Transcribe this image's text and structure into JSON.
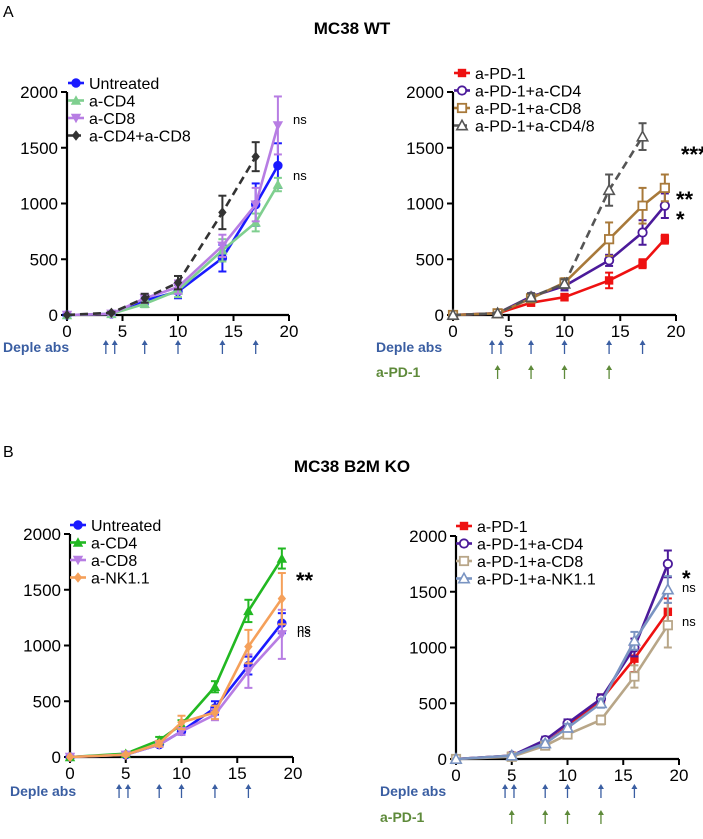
{
  "figure": {
    "panel_A_letter": "A",
    "panel_A_title": "MC38 WT",
    "panel_B_letter": "B",
    "panel_B_title": "MC38 B2M KO"
  },
  "chart_data": [
    {
      "type": "line",
      "panel": "A-left",
      "title": "",
      "xlim": [
        0,
        20
      ],
      "ylim": [
        0,
        2000
      ],
      "xticks": [
        0,
        5,
        10,
        15,
        20
      ],
      "yticks": [
        0,
        500,
        1000,
        1500,
        2000
      ],
      "legend_position": "top-left",
      "series": [
        {
          "name": "Untreated",
          "color": "#1a1aff",
          "marker": "circle-filled",
          "dashed": false,
          "x": [
            0,
            4,
            7,
            10,
            14,
            17,
            19
          ],
          "y": [
            0,
            10,
            130,
            210,
            510,
            990,
            1340
          ],
          "err": [
            0,
            8,
            35,
            60,
            120,
            190,
            200
          ]
        },
        {
          "name": "a-CD4",
          "color": "#7fcf8f",
          "marker": "triangle-up",
          "dashed": false,
          "x": [
            0,
            4,
            7,
            10,
            14,
            17,
            19
          ],
          "y": [
            0,
            10,
            100,
            220,
            580,
            830,
            1170
          ],
          "err": [
            0,
            8,
            30,
            60,
            100,
            80,
            60
          ]
        },
        {
          "name": "a-CD8",
          "color": "#b77de3",
          "marker": "triangle-down",
          "dashed": false,
          "x": [
            0,
            4,
            7,
            10,
            14,
            17,
            19
          ],
          "y": [
            0,
            10,
            150,
            250,
            620,
            990,
            1700
          ],
          "err": [
            0,
            8,
            40,
            60,
            100,
            150,
            260
          ]
        },
        {
          "name": "a-CD4+a-CD8",
          "color": "#333333",
          "marker": "diamond",
          "dashed": true,
          "x": [
            0,
            4,
            7,
            10,
            14,
            17
          ],
          "y": [
            0,
            20,
            150,
            290,
            920,
            1420
          ],
          "err": [
            0,
            8,
            40,
            60,
            150,
            130
          ]
        }
      ],
      "annotations": [
        {
          "text": "ns",
          "series": "a-CD8"
        },
        {
          "text": "ns",
          "series": "Untreated"
        }
      ],
      "below_axis": [
        {
          "label": "Deple abs",
          "color": "#3a5ea2",
          "days": [
            3.5,
            4.3,
            7,
            10,
            14,
            17
          ]
        }
      ]
    },
    {
      "type": "line",
      "panel": "A-right",
      "title": "",
      "xlim": [
        0,
        20
      ],
      "ylim": [
        0,
        2000
      ],
      "xticks": [
        0,
        5,
        10,
        15,
        20
      ],
      "yticks": [
        0,
        500,
        1000,
        1500,
        2000
      ],
      "legend_position": "top-left",
      "series": [
        {
          "name": "a-PD-1",
          "color": "#ee1111",
          "marker": "square-filled",
          "dashed": false,
          "x": [
            0,
            4,
            7,
            10,
            14,
            17,
            19
          ],
          "y": [
            0,
            15,
            110,
            160,
            310,
            460,
            680
          ],
          "err": [
            0,
            8,
            25,
            30,
            70,
            40,
            40
          ]
        },
        {
          "name": "a-PD-1+a-CD4",
          "color": "#4b1a9a",
          "marker": "circle-open",
          "dashed": false,
          "x": [
            0,
            4,
            7,
            10,
            14,
            17,
            19
          ],
          "y": [
            0,
            15,
            165,
            260,
            490,
            740,
            980
          ],
          "err": [
            0,
            8,
            30,
            40,
            50,
            110,
            110
          ]
        },
        {
          "name": "a-PD-1+a-CD8",
          "color": "#a8793a",
          "marker": "square-open",
          "dashed": false,
          "x": [
            0,
            4,
            7,
            10,
            14,
            17,
            19
          ],
          "y": [
            0,
            15,
            150,
            290,
            680,
            980,
            1140
          ],
          "err": [
            0,
            8,
            35,
            40,
            150,
            160,
            120
          ]
        },
        {
          "name": "a-PD-1+a-CD4/8",
          "color": "#555555",
          "marker": "triangle-open",
          "dashed": true,
          "x": [
            0,
            4,
            7,
            10,
            14,
            17
          ],
          "y": [
            0,
            15,
            160,
            280,
            1120,
            1600
          ],
          "err": [
            0,
            8,
            35,
            40,
            140,
            120
          ]
        }
      ],
      "annotations": [
        {
          "text": "****",
          "series": "a-PD-1+a-CD4/8"
        },
        {
          "text": "**",
          "series": "a-PD-1+a-CD8"
        },
        {
          "text": "*",
          "series": "a-PD-1+a-CD4"
        }
      ],
      "below_axis": [
        {
          "label": "Deple abs",
          "color": "#3a5ea2",
          "days": [
            3.5,
            4.3,
            7,
            10,
            14,
            17
          ]
        },
        {
          "label": "a-PD-1",
          "color": "#5e8a3a",
          "days": [
            4,
            7,
            10,
            14
          ]
        }
      ]
    },
    {
      "type": "line",
      "panel": "B-left",
      "title": "",
      "xlim": [
        0,
        20
      ],
      "ylim": [
        0,
        2000
      ],
      "xticks": [
        0,
        5,
        10,
        15,
        20
      ],
      "yticks": [
        0,
        500,
        1000,
        1500,
        2000
      ],
      "legend_position": "top-left",
      "series": [
        {
          "name": "Untreated",
          "color": "#1a1aff",
          "marker": "circle-filled",
          "dashed": false,
          "x": [
            0,
            5,
            8,
            10,
            13,
            16,
            19
          ],
          "y": [
            0,
            20,
            110,
            230,
            440,
            820,
            1200
          ],
          "err": [
            0,
            8,
            20,
            30,
            60,
            80,
            90
          ]
        },
        {
          "name": "a-CD4",
          "color": "#22b822",
          "marker": "triangle-up",
          "dashed": false,
          "x": [
            0,
            5,
            8,
            10,
            13,
            16,
            19
          ],
          "y": [
            0,
            30,
            150,
            290,
            630,
            1310,
            1780
          ],
          "err": [
            0,
            8,
            30,
            40,
            50,
            100,
            90
          ]
        },
        {
          "name": "a-CD8",
          "color": "#b77de3",
          "marker": "triangle-down",
          "dashed": false,
          "x": [
            0,
            5,
            8,
            10,
            13,
            16,
            19
          ],
          "y": [
            0,
            20,
            110,
            230,
            380,
            770,
            1100
          ],
          "err": [
            0,
            8,
            20,
            30,
            50,
            150,
            220
          ]
        },
        {
          "name": "a-NK1.1",
          "color": "#f5a05a",
          "marker": "diamond",
          "dashed": false,
          "x": [
            0,
            5,
            8,
            10,
            13,
            16,
            19
          ],
          "y": [
            0,
            20,
            120,
            310,
            400,
            990,
            1420
          ],
          "err": [
            0,
            8,
            25,
            60,
            60,
            150,
            230
          ]
        }
      ],
      "annotations": [
        {
          "text": "**",
          "series": "a-CD4"
        },
        {
          "text": "ns",
          "series": "a-NK1.1"
        },
        {
          "text": "ns",
          "series": "Untreated"
        }
      ],
      "below_axis": [
        {
          "label": "Deple abs",
          "color": "#3a5ea2",
          "days": [
            4.4,
            5.2,
            8,
            10,
            13,
            16
          ]
        }
      ]
    },
    {
      "type": "line",
      "panel": "B-right",
      "title": "",
      "xlim": [
        0,
        20
      ],
      "ylim": [
        0,
        2000
      ],
      "xticks": [
        0,
        5,
        10,
        15,
        20
      ],
      "yticks": [
        0,
        500,
        1000,
        1500,
        2000
      ],
      "legend_position": "top-left",
      "series": [
        {
          "name": "a-PD-1",
          "color": "#ee1111",
          "marker": "square-filled",
          "dashed": false,
          "x": [
            0,
            5,
            8,
            10,
            13,
            16,
            19
          ],
          "y": [
            0,
            30,
            140,
            290,
            530,
            900,
            1320
          ],
          "err": [
            0,
            8,
            25,
            35,
            50,
            120,
            120
          ]
        },
        {
          "name": "a-PD-1+a-CD4",
          "color": "#4b1a9a",
          "marker": "circle-open",
          "dashed": false,
          "x": [
            0,
            5,
            8,
            10,
            13,
            16,
            19
          ],
          "y": [
            0,
            30,
            170,
            320,
            540,
            1000,
            1750
          ],
          "err": [
            0,
            8,
            30,
            35,
            40,
            80,
            120
          ]
        },
        {
          "name": "a-PD-1+a-CD8",
          "color": "#b8a688",
          "marker": "square-open",
          "dashed": false,
          "x": [
            0,
            5,
            8,
            10,
            13,
            16,
            19
          ],
          "y": [
            0,
            20,
            120,
            220,
            350,
            740,
            1200
          ],
          "err": [
            0,
            8,
            25,
            30,
            40,
            100,
            200
          ]
        },
        {
          "name": "a-PD-1+a-NK1.1",
          "color": "#7a94c2",
          "marker": "triangle-open",
          "dashed": false,
          "x": [
            0,
            5,
            8,
            10,
            13,
            16,
            19
          ],
          "y": [
            0,
            30,
            140,
            280,
            500,
            1060,
            1520
          ],
          "err": [
            0,
            8,
            25,
            35,
            40,
            80,
            120
          ]
        }
      ],
      "annotations": [
        {
          "text": "*",
          "series": "a-PD-1+a-CD4"
        },
        {
          "text": "ns",
          "series": "a-PD-1+a-NK1.1"
        },
        {
          "text": "ns",
          "series": "a-PD-1"
        }
      ],
      "below_axis": [
        {
          "label": "Deple abs",
          "color": "#3a5ea2",
          "days": [
            4.4,
            5.2,
            8,
            10,
            13,
            16
          ]
        },
        {
          "label": "a-PD-1",
          "color": "#5e8a3a",
          "days": [
            5,
            8,
            10,
            13
          ]
        }
      ]
    }
  ]
}
